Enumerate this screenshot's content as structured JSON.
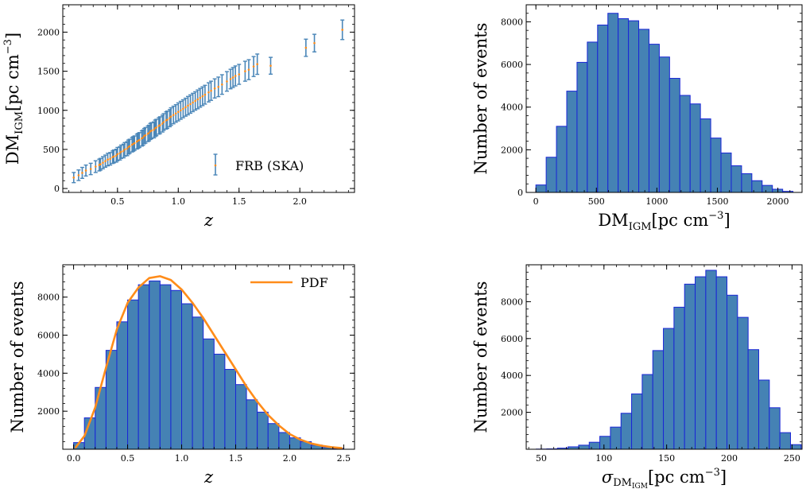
{
  "chart_data": [
    {
      "id": "dm-vs-z",
      "type": "scatter",
      "xlabel": "z",
      "ylabel": "DM_IGM[pc cm^-3]",
      "ylabel_parts": {
        "base": "DM",
        "sub": "IGM",
        "unit": "[pc cm",
        "exp": "−3",
        "close": "]"
      },
      "xlim": [
        0.05,
        2.45
      ],
      "ylim": [
        -50,
        2350
      ],
      "xticks": [
        0.5,
        1.0,
        1.5,
        2.0
      ],
      "xtick_labels": [
        "0.5",
        "1.0",
        "1.5",
        "2.0"
      ],
      "yticks": [
        0,
        500,
        1000,
        1500,
        2000
      ],
      "ytick_labels": [
        "0",
        "500",
        "1000",
        "1500",
        "2000"
      ],
      "legend": {
        "label": "FRB (SKA)",
        "position": "lower-right"
      },
      "errorbar_color": "#4a86b8",
      "point_color": "#ff8c1a",
      "points_z": [
        0.14,
        0.18,
        0.21,
        0.24,
        0.28,
        0.32,
        0.35,
        0.36,
        0.38,
        0.4,
        0.42,
        0.44,
        0.46,
        0.47,
        0.49,
        0.5,
        0.52,
        0.53,
        0.55,
        0.56,
        0.58,
        0.59,
        0.6,
        0.62,
        0.63,
        0.64,
        0.66,
        0.67,
        0.68,
        0.7,
        0.71,
        0.72,
        0.73,
        0.75,
        0.76,
        0.77,
        0.78,
        0.8,
        0.81,
        0.82,
        0.84,
        0.85,
        0.87,
        0.88,
        0.9,
        0.91,
        0.93,
        0.94,
        0.96,
        0.98,
        1.0,
        1.02,
        1.04,
        1.06,
        1.08,
        1.1,
        1.12,
        1.14,
        1.16,
        1.18,
        1.2,
        1.22,
        1.25,
        1.27,
        1.3,
        1.33,
        1.36,
        1.4,
        1.43,
        1.45,
        1.47,
        1.5,
        1.55,
        1.58,
        1.62,
        1.65,
        1.76,
        2.05,
        2.12,
        2.35
      ],
      "points_dm": [
        140,
        170,
        200,
        230,
        250,
        280,
        300,
        310,
        330,
        350,
        370,
        380,
        400,
        410,
        420,
        440,
        450,
        470,
        480,
        500,
        510,
        530,
        540,
        560,
        570,
        580,
        600,
        610,
        620,
        640,
        650,
        670,
        680,
        700,
        710,
        730,
        740,
        750,
        770,
        780,
        800,
        810,
        830,
        850,
        870,
        880,
        900,
        920,
        940,
        960,
        980,
        1000,
        1020,
        1040,
        1060,
        1080,
        1100,
        1120,
        1140,
        1160,
        1180,
        1200,
        1230,
        1250,
        1280,
        1300,
        1330,
        1370,
        1400,
        1420,
        1440,
        1460,
        1500,
        1520,
        1560,
        1590,
        1570,
        1800,
        1860,
        2030
      ],
      "points_err": [
        130,
        135,
        140,
        140,
        145,
        150,
        150,
        150,
        155,
        155,
        160,
        160,
        160,
        165,
        165,
        170,
        170,
        170,
        175,
        175,
        180,
        180,
        180,
        185,
        185,
        185,
        190,
        190,
        190,
        195,
        195,
        195,
        200,
        200,
        200,
        205,
        205,
        205,
        210,
        210,
        210,
        215,
        215,
        215,
        220,
        220,
        220,
        225,
        225,
        225,
        230,
        230,
        230,
        230,
        235,
        235,
        235,
        235,
        240,
        240,
        240,
        240,
        245,
        245,
        245,
        250,
        250,
        250,
        250,
        255,
        255,
        255,
        255,
        255,
        255,
        260,
        215,
        220,
        225,
        250
      ]
    },
    {
      "id": "dm-histogram",
      "type": "bar",
      "xlabel": "DM_IGM[pc cm^-3]",
      "xlabel_parts": {
        "base": "DM",
        "sub": "IGM",
        "unit": "[pc cm",
        "exp": "−3",
        "close": "]"
      },
      "ylabel": "Number of events",
      "xlim": [
        -80,
        2200
      ],
      "ylim": [
        0,
        8800
      ],
      "xticks": [
        0,
        500,
        1000,
        1500,
        2000
      ],
      "xtick_labels": [
        "0",
        "500",
        "1000",
        "1500",
        "2000"
      ],
      "yticks": [
        0,
        2000,
        4000,
        6000,
        8000
      ],
      "ytick_labels": [
        "0",
        "2000",
        "4000",
        "6000",
        "8000"
      ],
      "bin_start": 0,
      "bin_width": 85,
      "values": [
        350,
        1650,
        3100,
        4750,
        6100,
        7050,
        7850,
        8400,
        8150,
        8050,
        7650,
        6950,
        6350,
        5350,
        4550,
        4150,
        3450,
        2550,
        1850,
        1250,
        880,
        550,
        330,
        150,
        50
      ],
      "bar_color": "#4582b4",
      "edge_color": "#1a26d6"
    },
    {
      "id": "z-histogram",
      "type": "bar",
      "xlabel": "z",
      "ylabel": "Number of events",
      "xlim": [
        -0.1,
        2.6
      ],
      "ylim": [
        0,
        9700
      ],
      "xticks": [
        0.0,
        0.5,
        1.0,
        1.5,
        2.0,
        2.5
      ],
      "xtick_labels": [
        "0.0",
        "0.5",
        "1.0",
        "1.5",
        "2.0",
        "2.5"
      ],
      "yticks": [
        2000,
        4000,
        6000,
        8000
      ],
      "ytick_labels": [
        "2000",
        "4000",
        "6000",
        "8000"
      ],
      "bin_start": 0.0,
      "bin_width": 0.1,
      "values": [
        350,
        1650,
        3250,
        5200,
        6700,
        7850,
        8650,
        8850,
        8650,
        8350,
        7650,
        6950,
        5800,
        5000,
        4200,
        3400,
        2600,
        1950,
        1350,
        880,
        600,
        400,
        220,
        100,
        40
      ],
      "pdf_x": [
        0.02,
        0.1,
        0.2,
        0.3,
        0.4,
        0.5,
        0.6,
        0.7,
        0.8,
        0.9,
        1.0,
        1.1,
        1.2,
        1.3,
        1.4,
        1.5,
        1.6,
        1.7,
        1.8,
        1.9,
        2.0,
        2.1,
        2.2,
        2.3,
        2.4,
        2.48
      ],
      "pdf_y": [
        100,
        700,
        2200,
        4300,
        6300,
        7700,
        8500,
        9000,
        9100,
        8900,
        8400,
        7700,
        6900,
        6000,
        5100,
        4200,
        3300,
        2500,
        1800,
        1250,
        800,
        500,
        300,
        180,
        100,
        60
      ],
      "legend": {
        "label": "PDF",
        "position": "upper-right"
      },
      "bar_color": "#4582b4",
      "edge_color": "#1a26d6",
      "pdf_color": "#ff8c1a"
    },
    {
      "id": "sigma-histogram",
      "type": "bar",
      "xlabel": "σ_DM_IGM[pc cm^-3]",
      "xlabel_parts": {
        "sigma": "σ",
        "base": "DM",
        "sub": "IGM",
        "unit": "[pc cm",
        "exp": "−3",
        "close": "]"
      },
      "ylabel": "Number of events",
      "xlim": [
        38,
        258
      ],
      "ylim": [
        0,
        10000
      ],
      "xticks": [
        50,
        100,
        150,
        200,
        250
      ],
      "xtick_labels": [
        "50",
        "100",
        "150",
        "200",
        "250"
      ],
      "yticks": [
        2000,
        4000,
        6000,
        8000
      ],
      "ytick_labels": [
        "2000",
        "4000",
        "6000",
        "8000"
      ],
      "bin_start": 46,
      "bin_width": 8.45,
      "values": [
        10,
        20,
        60,
        130,
        220,
        380,
        700,
        1200,
        1950,
        3000,
        4050,
        5350,
        6550,
        7700,
        8950,
        9350,
        9700,
        9350,
        8350,
        7150,
        5400,
        3750,
        2250,
        900,
        250
      ],
      "bar_color": "#4582b4",
      "edge_color": "#1a26d6"
    }
  ]
}
